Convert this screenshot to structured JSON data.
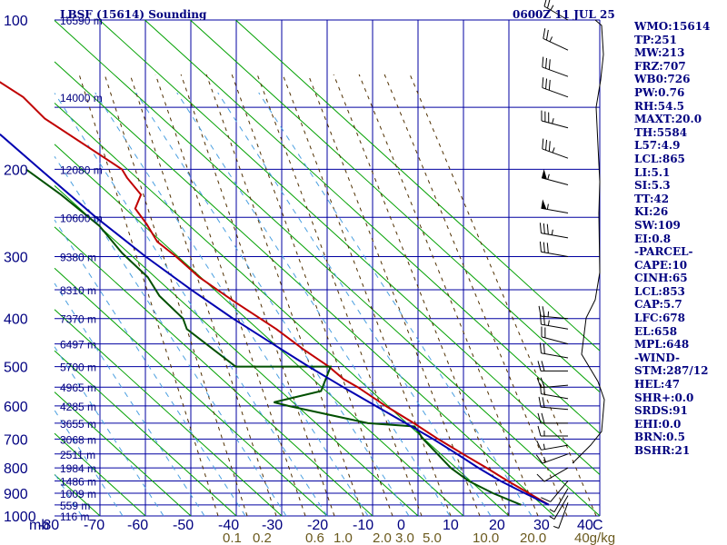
{
  "header": {
    "station": "LBSF (15614) Sounding",
    "time": "0600Z 11 JUL 25"
  },
  "indices": [
    "WMO:15614",
    "TP:251",
    "MW:213",
    "FRZ:707",
    "WB0:726",
    "PW:0.76",
    "RH:54.5",
    "MAXT:20.0",
    "TH:5584",
    "L57:4.9",
    "LCL:865",
    "LI:5.1",
    "SI:5.3",
    "TT:42",
    "KI:26",
    "SW:109",
    "EI:0.8",
    "-PARCEL-",
    "CAPE:10",
    "CINH:65",
    "LCL:853",
    "CAP:5.7",
    "LFC:678",
    "EL:658",
    "MPL:648",
    "-WIND-",
    "STM:287/12",
    "HEL:47",
    "SHR+:0.0",
    "SRDS:91",
    "EHI:0.0",
    "BRN:0.5",
    "BSHR:21"
  ],
  "chart_data": {
    "type": "line",
    "title": "LBSF (15614) Sounding",
    "xlabel": "",
    "ylabel": "mb",
    "ylog": true,
    "ylim": [
      1000,
      100
    ],
    "xlim": [
      -80,
      10
    ],
    "pressure_ticks": [
      "100",
      "200",
      "300",
      "400",
      "500",
      "600",
      "700",
      "800",
      "900",
      "1000"
    ],
    "temp_ticks": [
      "-80",
      "-70",
      "-60",
      "-50",
      "-40",
      "-30",
      "-20",
      "-10",
      "0",
      "10",
      "20",
      "30",
      "40",
      "C"
    ],
    "mixing_ratio_ticks": [
      "0.1",
      "0.2",
      "0.6",
      "1.0",
      "2.0",
      "3.0",
      "5.0",
      "10.0",
      "20.0",
      "40g/kg"
    ],
    "height_labels": [
      {
        "text": "16590 m",
        "p": 100
      },
      {
        "text": "14000 m",
        "p": 143
      },
      {
        "text": "12080 m",
        "p": 200
      },
      {
        "text": "10600 m",
        "p": 250
      },
      {
        "text": "9380 m",
        "p": 300
      },
      {
        "text": "8310 m",
        "p": 350
      },
      {
        "text": "7370 m",
        "p": 400
      },
      {
        "text": "6497 m",
        "p": 450
      },
      {
        "text": "5700 m",
        "p": 500
      },
      {
        "text": "4965 m",
        "p": 550
      },
      {
        "text": "4285 m",
        "p": 600
      },
      {
        "text": "3655 m",
        "p": 650
      },
      {
        "text": "3068 m",
        "p": 700
      },
      {
        "text": "2511 m",
        "p": 750
      },
      {
        "text": "1984 m",
        "p": 800
      },
      {
        "text": "1486 m",
        "p": 850
      },
      {
        "text": "1009 m",
        "p": 900
      },
      {
        "text": "559 m",
        "p": 950
      },
      {
        "text": "116 m",
        "p": 1000
      }
    ],
    "series": [
      {
        "color": "#c00000",
        "points": [
          [
            100,
            -71.4
          ],
          [
            120,
            -59.6
          ],
          [
            143,
            -50.8
          ],
          [
            158,
            -48.4
          ],
          [
            200,
            -37.0
          ],
          [
            208,
            -36.8
          ],
          [
            225,
            -35.6
          ],
          [
            240,
            -38.4
          ],
          [
            258,
            -37.6
          ],
          [
            280,
            -37.2
          ],
          [
            300,
            -34.7
          ],
          [
            330,
            -31.9
          ],
          [
            370,
            -26.8
          ],
          [
            420,
            -20.6
          ],
          [
            460,
            -17.0
          ],
          [
            500,
            -13.2
          ],
          [
            530,
            -11.3
          ],
          [
            550,
            -9.1
          ],
          [
            600,
            -5.0
          ],
          [
            650,
            -0.7
          ],
          [
            700,
            2.9
          ],
          [
            750,
            6.7
          ],
          [
            800,
            10.4
          ],
          [
            850,
            13.6
          ],
          [
            900,
            16.9
          ],
          [
            950,
            20.0
          ]
        ]
      },
      {
        "color": "#005000",
        "points": [
          [
            200,
            -58.1
          ],
          [
            225,
            -53.2
          ],
          [
            260,
            -48.2
          ],
          [
            295,
            -46.2
          ],
          [
            330,
            -43.2
          ],
          [
            360,
            -42.7
          ],
          [
            400,
            -40.0
          ],
          [
            420,
            -40.3
          ],
          [
            500,
            -33.7
          ],
          [
            500,
            -12.8
          ],
          [
            560,
            -17.6
          ],
          [
            590,
            -29.2
          ],
          [
            600,
            -26.4
          ],
          [
            650,
            -10.8
          ],
          [
            660,
            -0.9
          ],
          [
            700,
            -0.4
          ],
          [
            750,
            1.1
          ],
          [
            800,
            2.5
          ],
          [
            850,
            5.0
          ],
          [
            900,
            9.0
          ],
          [
            950,
            13.9
          ]
        ]
      },
      {
        "color": "#0000b0",
        "points": [
          [
            170,
            -60.0
          ],
          [
            200,
            -55.0
          ],
          [
            250,
            -48.0
          ],
          [
            300,
            -41.4
          ],
          [
            350,
            -35.0
          ],
          [
            400,
            -29.0
          ],
          [
            450,
            -23.0
          ],
          [
            500,
            -17.6
          ],
          [
            550,
            -12.3
          ],
          [
            600,
            -7.2
          ],
          [
            650,
            -2.5
          ],
          [
            700,
            1.8
          ],
          [
            750,
            5.4
          ],
          [
            800,
            8.6
          ],
          [
            850,
            12.0
          ],
          [
            900,
            16.0
          ],
          [
            950,
            20.0
          ]
        ]
      }
    ],
    "wind_barbs": [
      {
        "p": 100,
        "dir": 240,
        "spd": 25
      },
      {
        "p": 115,
        "dir": 245,
        "spd": 25
      },
      {
        "p": 130,
        "dir": 250,
        "spd": 30
      },
      {
        "p": 143,
        "dir": 250,
        "spd": 30
      },
      {
        "p": 165,
        "dir": 255,
        "spd": 35
      },
      {
        "p": 190,
        "dir": 250,
        "spd": 35
      },
      {
        "p": 215,
        "dir": 255,
        "spd": 55
      },
      {
        "p": 245,
        "dir": 260,
        "spd": 55
      },
      {
        "p": 275,
        "dir": 260,
        "spd": 35
      },
      {
        "p": 300,
        "dir": 260,
        "spd": 30
      },
      {
        "p": 400,
        "dir": 265,
        "spd": 25
      },
      {
        "p": 420,
        "dir": 260,
        "spd": 25
      },
      {
        "p": 450,
        "dir": 255,
        "spd": 20
      },
      {
        "p": 480,
        "dir": 260,
        "spd": 20
      },
      {
        "p": 510,
        "dir": 270,
        "spd": 20
      },
      {
        "p": 545,
        "dir": 275,
        "spd": 20
      },
      {
        "p": 580,
        "dir": 260,
        "spd": 20
      },
      {
        "p": 610,
        "dir": 265,
        "spd": 20
      },
      {
        "p": 650,
        "dir": 270,
        "spd": 20
      },
      {
        "p": 690,
        "dir": 270,
        "spd": 15
      },
      {
        "p": 720,
        "dir": 280,
        "spd": 15
      },
      {
        "p": 750,
        "dir": 290,
        "spd": 15
      },
      {
        "p": 800,
        "dir": 300,
        "spd": 10
      },
      {
        "p": 850,
        "dir": 320,
        "spd": 10
      },
      {
        "p": 880,
        "dir": 330,
        "spd": 5
      },
      {
        "p": 910,
        "dir": 330,
        "spd": 5
      },
      {
        "p": 940,
        "dir": 340,
        "spd": 5
      }
    ],
    "hodograph_points": [
      [
        655,
        22
      ],
      [
        662,
        28
      ],
      [
        664,
        60
      ],
      [
        661,
        88
      ],
      [
        656,
        118
      ],
      [
        658,
        160
      ],
      [
        660,
        200
      ],
      [
        659,
        235
      ],
      [
        660,
        300
      ],
      [
        655,
        330
      ],
      [
        645,
        350
      ],
      [
        640,
        390
      ],
      [
        658,
        420
      ],
      [
        665,
        440
      ],
      [
        662,
        475
      ],
      [
        650,
        490
      ],
      [
        640,
        500
      ],
      [
        630,
        510
      ]
    ]
  }
}
